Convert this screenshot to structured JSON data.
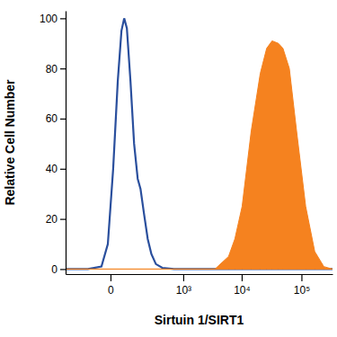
{
  "chart_data": {
    "type": "line",
    "x_label": "Sirtuin 1/SIRT1",
    "y_label": "Relative Cell Number",
    "log": "x",
    "grid": false,
    "xlim": [
      -300,
      330000
    ],
    "xticks": [
      0,
      {
        "value": 1000,
        "label": "10³"
      },
      {
        "value": 10000,
        "label": "10⁴"
      },
      {
        "value": 100000,
        "label": "10⁵"
      }
    ],
    "ylim": [
      -2,
      103
    ],
    "yticks": [
      0,
      20,
      40,
      60,
      80,
      100
    ],
    "series": [
      {
        "type": "line",
        "color": "#2a4f9d",
        "x": [
          -300,
          -90,
          -27,
          -7,
          7,
          21,
          34,
          45,
          57,
          75,
          96,
          120,
          141,
          171,
          207,
          248,
          307,
          410,
          682,
          330000
        ],
        "values": [
          0,
          0,
          1,
          10,
          40,
          75,
          95,
          100,
          96,
          75,
          50,
          36,
          32,
          22,
          12,
          6,
          2,
          0.5,
          0,
          0
        ]
      },
      {
        "type": "area",
        "color": "#f5821f",
        "x": [
          -300,
          3530,
          6000,
          7670,
          10170,
          14440,
          20480,
          26200,
          32280,
          41240,
          49120,
          62740,
          82950,
          117650,
          166700,
          236300,
          330000
        ],
        "values": [
          0,
          0,
          5,
          12,
          25,
          55,
          78,
          88,
          91,
          90,
          88,
          80,
          55,
          25,
          7,
          1,
          0
        ]
      }
    ]
  }
}
